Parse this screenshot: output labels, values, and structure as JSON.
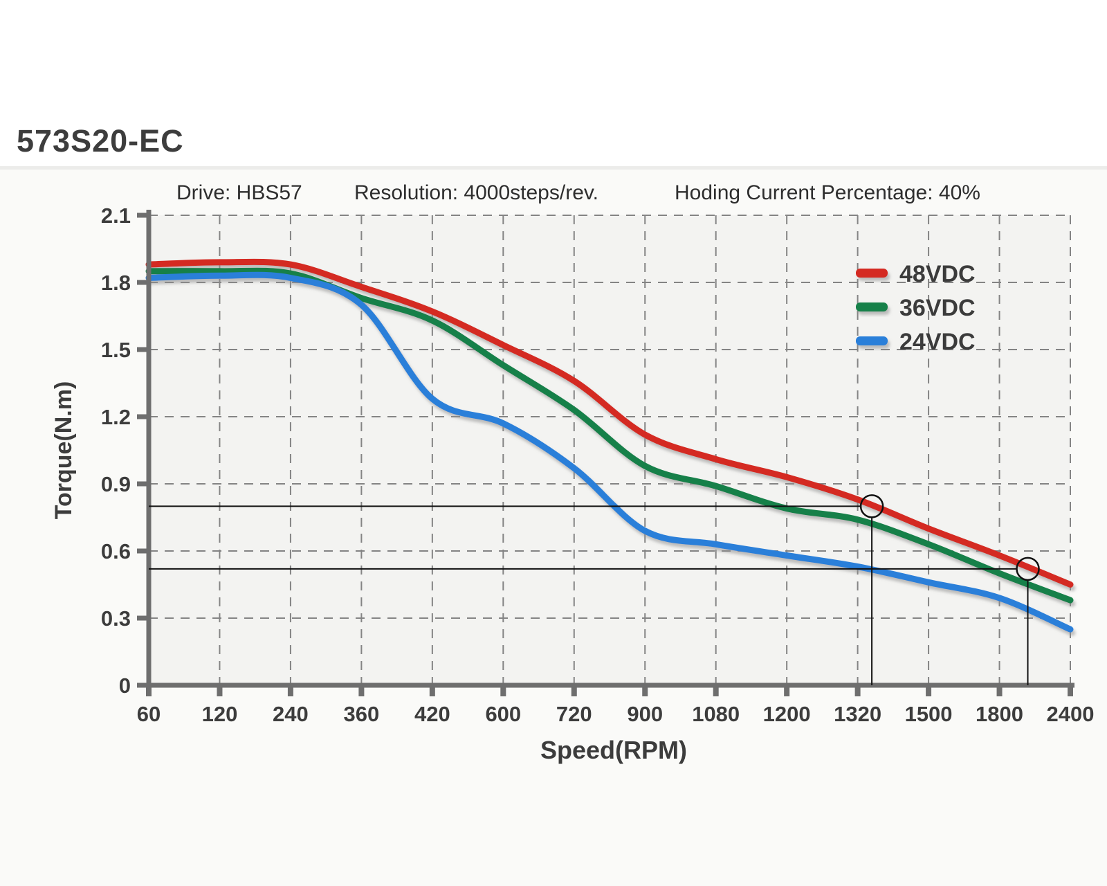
{
  "title": "573S20-EC",
  "header": {
    "drive": "Drive: HBS57",
    "resolution": "Resolution: 4000steps/rev.",
    "holding": "Hoding Current Percentage: 40%"
  },
  "chart_data": {
    "type": "line",
    "title": "",
    "xlabel": "Speed(RPM)",
    "ylabel": "Torque(N.m)",
    "x_scale": "categorical",
    "categories": [
      60,
      120,
      240,
      360,
      420,
      600,
      720,
      900,
      1080,
      1200,
      1320,
      1500,
      1800,
      2400
    ],
    "y_ticks": [
      0,
      0.3,
      0.6,
      0.9,
      1.2,
      1.5,
      1.8,
      2.1
    ],
    "ylim": [
      0,
      2.1
    ],
    "grid": true,
    "grid_style": "dashed",
    "legend_position": "top-right",
    "series": [
      {
        "name": "48VDC",
        "color": "#d42a22",
        "values": [
          1.88,
          1.89,
          1.88,
          1.78,
          1.67,
          1.52,
          1.36,
          1.12,
          1.01,
          0.93,
          0.83,
          0.7,
          0.58,
          0.45
        ]
      },
      {
        "name": "36VDC",
        "color": "#14804a",
        "values": [
          1.85,
          1.85,
          1.84,
          1.73,
          1.63,
          1.43,
          1.23,
          0.98,
          0.89,
          0.79,
          0.74,
          0.63,
          0.5,
          0.38
        ]
      },
      {
        "name": "24VDC",
        "color": "#2b7fd9",
        "values": [
          1.82,
          1.83,
          1.82,
          1.7,
          1.28,
          1.17,
          0.97,
          0.69,
          0.63,
          0.58,
          0.53,
          0.46,
          0.39,
          0.25
        ]
      }
    ],
    "annotations": [
      {
        "type": "circle-callout",
        "on_series": "48VDC",
        "x_index": 10.2,
        "speed_approx": 1356,
        "torque": 0.8
      },
      {
        "type": "circle-callout",
        "on_series": "48VDC",
        "x_index": 12.4,
        "speed_approx": 2040,
        "torque": 0.52
      }
    ],
    "colors": {
      "axis": "#6e6e6e",
      "gridline": "#848484",
      "tick_label": "#3c3c3c",
      "annotation": "#111111",
      "plot_background": "#f3f3f1"
    }
  }
}
